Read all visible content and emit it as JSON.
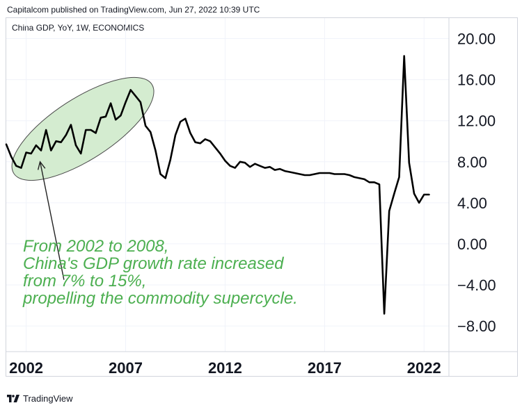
{
  "header": {
    "published": "Capitalcom published on TradingView.com, Jun 27, 2022 10:39 UTC",
    "symbol": "China GDP, YoY, 1W, ECONOMICS"
  },
  "footer": {
    "brand": "TradingView",
    "logo_icon": "tradingview-logo-icon"
  },
  "colors": {
    "line": "#000000",
    "highlight_fill": "#d4ecd0",
    "highlight_stroke": "#4a4a4a",
    "annotation_text": "#4caf50",
    "grid": "#f0f3fa"
  },
  "chart_data": {
    "type": "line",
    "title": "China GDP, YoY, 1W, ECONOMICS",
    "xlabel": "",
    "ylabel": "",
    "axis_side": "right",
    "xlim": [
      2001.0,
      2023.25
    ],
    "ylim": [
      -10.5,
      22.0
    ],
    "y_ticks": [
      20,
      16,
      12,
      8,
      4,
      0,
      -4,
      -8
    ],
    "y_tick_labels": [
      "20.00",
      "16.00",
      "12.00",
      "8.00",
      "4.00",
      "0.00",
      "−4.00",
      "−8.00"
    ],
    "x_ticks": [
      2002,
      2007,
      2012,
      2017,
      2022
    ],
    "x_tick_labels": [
      "2002",
      "2007",
      "2012",
      "2017",
      "2022"
    ],
    "grid": true,
    "series": [
      {
        "name": "China GDP YoY",
        "x": [
          2001.0,
          2001.25,
          2001.5,
          2001.75,
          2002.0,
          2002.25,
          2002.5,
          2002.75,
          2003.0,
          2003.25,
          2003.5,
          2003.75,
          2004.0,
          2004.25,
          2004.5,
          2004.75,
          2005.0,
          2005.25,
          2005.5,
          2005.75,
          2006.0,
          2006.25,
          2006.5,
          2006.75,
          2007.0,
          2007.25,
          2007.5,
          2007.75,
          2008.0,
          2008.25,
          2008.5,
          2008.75,
          2009.0,
          2009.25,
          2009.5,
          2009.75,
          2010.0,
          2010.25,
          2010.5,
          2010.75,
          2011.0,
          2011.25,
          2011.5,
          2011.75,
          2012.0,
          2012.25,
          2012.5,
          2012.75,
          2013.0,
          2013.25,
          2013.5,
          2013.75,
          2014.0,
          2014.25,
          2014.5,
          2014.75,
          2015.0,
          2015.25,
          2015.5,
          2015.75,
          2016.0,
          2016.25,
          2016.5,
          2016.75,
          2017.0,
          2017.25,
          2017.5,
          2017.75,
          2018.0,
          2018.25,
          2018.5,
          2018.75,
          2019.0,
          2019.25,
          2019.5,
          2019.75,
          2020.0,
          2020.25,
          2020.5,
          2020.75,
          2021.0,
          2021.25,
          2021.5,
          2021.75,
          2022.0,
          2022.25
        ],
        "values": [
          9.7,
          8.5,
          7.6,
          7.4,
          8.9,
          8.8,
          9.6,
          9.1,
          11.1,
          9.1,
          10.0,
          9.9,
          10.6,
          11.6,
          9.6,
          8.8,
          11.1,
          11.1,
          10.8,
          12.3,
          12.4,
          13.7,
          12.1,
          12.5,
          13.8,
          15.0,
          14.4,
          13.8,
          11.5,
          10.9,
          9.1,
          6.8,
          6.4,
          8.2,
          10.6,
          11.9,
          12.2,
          10.8,
          9.9,
          9.8,
          10.2,
          10.0,
          9.4,
          8.8,
          8.1,
          7.6,
          7.4,
          8.0,
          7.9,
          7.5,
          7.8,
          7.6,
          7.4,
          7.5,
          7.2,
          7.3,
          7.1,
          7.0,
          6.9,
          6.8,
          6.7,
          6.7,
          6.8,
          6.9,
          6.9,
          6.9,
          6.8,
          6.8,
          6.8,
          6.7,
          6.5,
          6.4,
          6.3,
          6.0,
          6.0,
          5.8,
          -6.8,
          3.2,
          4.9,
          6.5,
          18.3,
          7.9,
          4.9,
          4.0,
          4.8,
          4.8
        ]
      }
    ],
    "annotations": [
      {
        "type": "ellipse",
        "label": "2002-2008 highlight",
        "x_range": [
          2001.5,
          2008.2
        ],
        "y_range": [
          7.0,
          15.4
        ]
      },
      {
        "type": "arrow",
        "from_data": [
          2003.9,
          -3.5
        ],
        "to_data": [
          2002.7,
          8.0
        ]
      },
      {
        "type": "text",
        "lines": [
          "From 2002 to 2008,",
          "China's GDP growth rate increased",
          "from 7% to 15%,",
          "propelling the commodity supercycle."
        ]
      }
    ]
  }
}
